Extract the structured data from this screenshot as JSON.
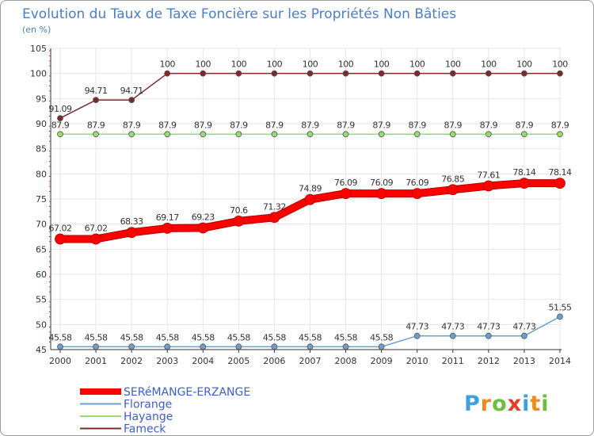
{
  "chart_data": {
    "type": "line",
    "title": "Evolution du Taux de Taxe Foncière sur les Propriétés Non Bâties",
    "unit_label": "(en %)",
    "xlabel": "",
    "ylabel": "",
    "ylim": [
      45,
      105
    ],
    "y_ticks": [
      45,
      50,
      55,
      60,
      65,
      70,
      75,
      80,
      85,
      90,
      95,
      100,
      105
    ],
    "categories": [
      "2000",
      "2001",
      "2002",
      "2003",
      "2004",
      "2005",
      "2006",
      "2007",
      "2008",
      "2009",
      "2010",
      "2011",
      "2012",
      "2013",
      "2014"
    ],
    "series": [
      {
        "name": "SERéMANGE-ERZANGE",
        "color": "#ff0000",
        "values": [
          67.02,
          67.02,
          68.33,
          69.17,
          69.23,
          70.6,
          71.32,
          74.89,
          76.09,
          76.09,
          76.09,
          76.85,
          77.61,
          78.14,
          78.14
        ],
        "labels": [
          "67.02",
          "67.02",
          "68.33",
          "69.17",
          "69.23",
          "70.6",
          "71.32",
          "74.89",
          "76.09",
          "76.09",
          "76.09",
          "76.85",
          "77.61",
          "78.14",
          "78.14"
        ]
      },
      {
        "name": "Florange",
        "color": "#6a9fd0",
        "values": [
          45.58,
          45.58,
          45.58,
          45.58,
          45.58,
          45.58,
          45.58,
          45.58,
          45.58,
          45.58,
          47.73,
          47.73,
          47.73,
          47.73,
          51.55
        ],
        "labels": [
          "45.58",
          "45.58",
          "45.58",
          "45.58",
          "45.58",
          "45.58",
          "45.58",
          "45.58",
          "45.58",
          "45.58",
          "47.73",
          "47.73",
          "47.73",
          "47.73",
          "51.55"
        ]
      },
      {
        "name": "Hayange",
        "color": "#99dd66",
        "values": [
          87.9,
          87.9,
          87.9,
          87.9,
          87.9,
          87.9,
          87.9,
          87.9,
          87.9,
          87.9,
          87.9,
          87.9,
          87.9,
          87.9,
          87.9
        ],
        "labels": [
          "87.9",
          "87.9",
          "87.9",
          "87.9",
          "87.9",
          "87.9",
          "87.9",
          "87.9",
          "87.9",
          "87.9",
          "87.9",
          "87.9",
          "87.9",
          "87.9",
          "87.9"
        ]
      },
      {
        "name": "Fameck",
        "color": "#7a2a2a",
        "values": [
          91.09,
          94.71,
          94.71,
          100,
          100,
          100,
          100,
          100,
          100,
          100,
          100,
          100,
          100,
          100,
          100
        ],
        "labels": [
          "91.09",
          "94.71",
          "94.71",
          "100",
          "100",
          "100",
          "100",
          "100",
          "100",
          "100",
          "100",
          "100",
          "100",
          "100",
          "100"
        ]
      }
    ],
    "legend_position": "bottom-left",
    "grid": true
  },
  "logo": {
    "text": "Proxiti"
  }
}
